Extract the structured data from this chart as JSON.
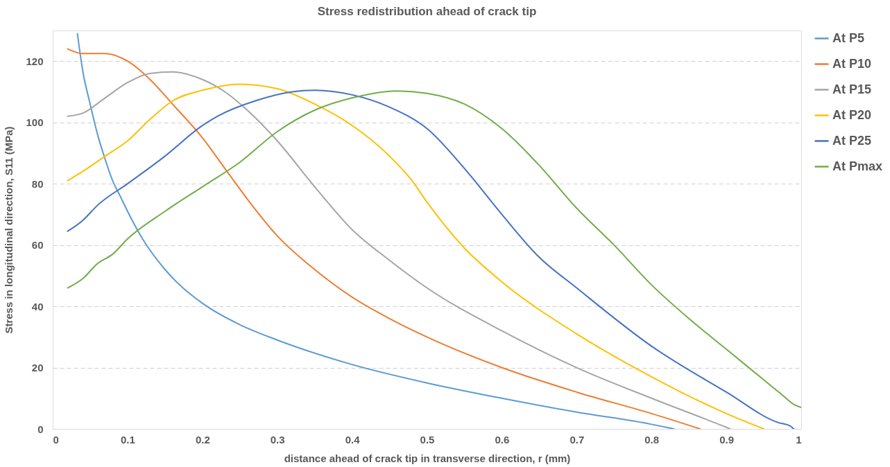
{
  "chart_data": {
    "type": "line",
    "title": "Stress redistribution ahead of crack tip",
    "xlabel": "distance ahead of crack tip in transverse direction, r (mm)",
    "ylabel": "Stress in longitudinal direction, S11 (MPa)",
    "xlim": [
      0,
      1
    ],
    "xticks": [
      0,
      0.1,
      0.2,
      0.3,
      0.4,
      0.5,
      0.6,
      0.7,
      0.8,
      0.9,
      1
    ],
    "ylim": [
      0,
      130
    ],
    "yticks": [
      0,
      20,
      40,
      60,
      80,
      100,
      120
    ],
    "grid": "y",
    "legend": "right",
    "marker": "none",
    "line_style": "solid",
    "series": [
      {
        "name": "At P5",
        "color": "#5b9bd5",
        "x": [
          0.033,
          0.04,
          0.05,
          0.06,
          0.07,
          0.08,
          0.09,
          0.1,
          0.12,
          0.15,
          0.2,
          0.25,
          0.3,
          0.4,
          0.5,
          0.6,
          0.7,
          0.8,
          0.83
        ],
        "values": [
          129,
          117,
          106,
          96,
          88,
          81,
          76,
          71,
          62,
          52,
          41,
          34,
          29,
          21,
          15,
          10,
          5.5,
          1.5,
          0
        ]
      },
      {
        "name": "At P10",
        "color": "#ed7d31",
        "x": [
          0.02,
          0.04,
          0.07,
          0.1,
          0.13,
          0.16,
          0.2,
          0.23,
          0.26,
          0.3,
          0.35,
          0.4,
          0.45,
          0.5,
          0.6,
          0.7,
          0.8,
          0.865
        ],
        "values": [
          124,
          122.5,
          122.5,
          120,
          114,
          106,
          95,
          85,
          75,
          63,
          52,
          43,
          36,
          30,
          20,
          12,
          5,
          0
        ]
      },
      {
        "name": "At P15",
        "color": "#a5a5a5",
        "x": [
          0.02,
          0.04,
          0.07,
          0.1,
          0.13,
          0.16,
          0.2,
          0.23,
          0.26,
          0.3,
          0.35,
          0.4,
          0.45,
          0.5,
          0.6,
          0.7,
          0.8,
          0.9,
          0.905
        ],
        "values": [
          102,
          103,
          108,
          113,
          116,
          116.5,
          114,
          110,
          104,
          94,
          79,
          65,
          55,
          46,
          32,
          20,
          10,
          0.5,
          0
        ]
      },
      {
        "name": "At P20",
        "color": "#ffc000",
        "x": [
          0.02,
          0.04,
          0.07,
          0.1,
          0.13,
          0.16,
          0.2,
          0.25,
          0.3,
          0.35,
          0.4,
          0.45,
          0.48,
          0.5,
          0.55,
          0.6,
          0.7,
          0.8,
          0.9,
          0.95
        ],
        "values": [
          81,
          84,
          89,
          94,
          101,
          107,
          110.5,
          112.5,
          111,
          106,
          99,
          89,
          81,
          74,
          59,
          48,
          31,
          17,
          5,
          0
        ]
      },
      {
        "name": "At P25",
        "color": "#4472c4",
        "x": [
          0.02,
          0.04,
          0.06,
          0.1,
          0.15,
          0.2,
          0.22,
          0.27,
          0.32,
          0.35,
          0.4,
          0.45,
          0.5,
          0.55,
          0.6,
          0.65,
          0.7,
          0.8,
          0.9,
          0.97,
          0.985,
          0.99
        ],
        "values": [
          64.5,
          68,
          73,
          80,
          89,
          99,
          102,
          107,
          110,
          110.5,
          109,
          105,
          98,
          85,
          70,
          56,
          46,
          27,
          12,
          2,
          1,
          0
        ]
      },
      {
        "name": "At Pmax",
        "color": "#70ad47",
        "x": [
          0.02,
          0.04,
          0.06,
          0.08,
          0.1,
          0.15,
          0.2,
          0.25,
          0.3,
          0.35,
          0.4,
          0.46,
          0.5,
          0.55,
          0.6,
          0.65,
          0.7,
          0.75,
          0.8,
          0.85,
          0.9,
          0.95,
          0.975,
          0.99,
          1.0
        ],
        "values": [
          46,
          49,
          54,
          57,
          62,
          71,
          79,
          87,
          97,
          104,
          108,
          110.3,
          109.5,
          106,
          98,
          86,
          72,
          60,
          47,
          36,
          26,
          16,
          11,
          8,
          7
        ]
      }
    ]
  }
}
